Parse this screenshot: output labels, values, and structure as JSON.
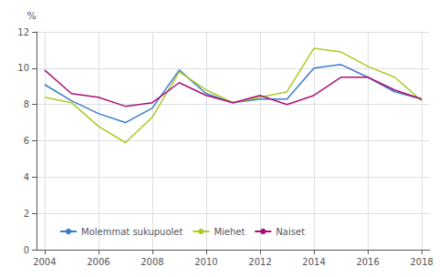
{
  "chart_data": {
    "type": "line",
    "x": [
      2004,
      2005,
      2006,
      2007,
      2008,
      2009,
      2010,
      2011,
      2012,
      2013,
      2014,
      2015,
      2016,
      2017,
      2018
    ],
    "series": [
      {
        "name": "Molemmat sukupuolet",
        "color": "#3B7CC8",
        "values": [
          9.1,
          8.2,
          7.5,
          7.0,
          7.8,
          9.9,
          8.6,
          8.1,
          8.3,
          8.3,
          10.0,
          10.2,
          9.5,
          8.7,
          8.3
        ]
      },
      {
        "name": "Miehet",
        "color": "#AACC22",
        "values": [
          8.4,
          8.1,
          6.8,
          5.9,
          7.3,
          9.8,
          8.8,
          8.1,
          8.4,
          8.7,
          11.1,
          10.9,
          10.1,
          9.5,
          8.2
        ]
      },
      {
        "name": "Naiset",
        "color": "#AA1177",
        "values": [
          9.9,
          8.6,
          8.4,
          7.9,
          8.1,
          9.2,
          8.5,
          8.1,
          8.5,
          8.0,
          8.5,
          9.5,
          9.5,
          8.8,
          8.3
        ]
      }
    ],
    "ylabel": "%",
    "xlim": [
      2003.7,
      2018.3
    ],
    "xticks": [
      2004,
      2006,
      2008,
      2010,
      2012,
      2014,
      2016,
      2018
    ],
    "ylim": [
      0,
      12
    ],
    "yticks": [
      0,
      2,
      4,
      6,
      8,
      10,
      12
    ],
    "grid": true,
    "legend": "lower left"
  }
}
